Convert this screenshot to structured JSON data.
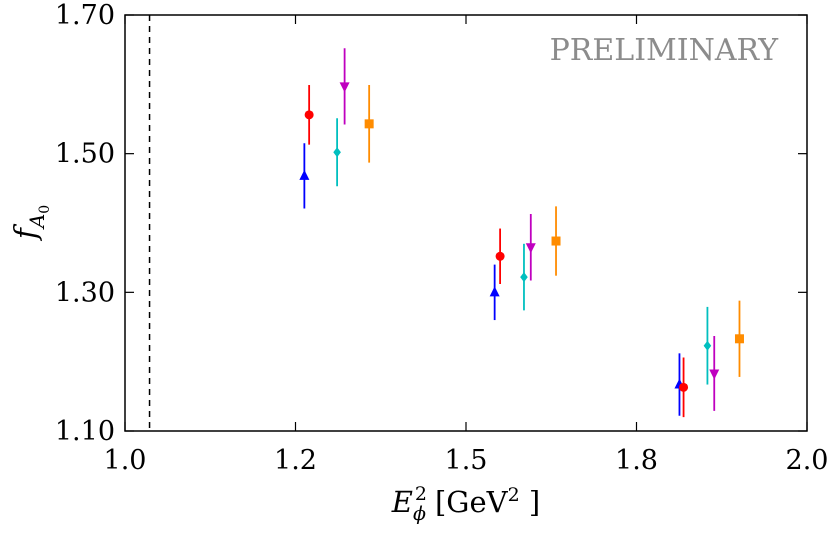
{
  "chart_data": {
    "type": "scatter",
    "title": "",
    "xlabel": {
      "base": "E",
      "sub": "ϕ",
      "sup": "2",
      "unit_prefix": "[GeV",
      "unit_sup": "2",
      "unit_suffix": " ]"
    },
    "ylabel": {
      "base": "f",
      "sub": "A",
      "subsub": "0"
    },
    "xlim": [
      1.0,
      2.0
    ],
    "ylim": [
      1.1,
      1.7
    ],
    "xticks": [
      1.0,
      1.25,
      1.5,
      1.75,
      2.0
    ],
    "xtick_labels": [
      "1.0",
      "1.2",
      "1.5",
      "1.8",
      "2.0"
    ],
    "yticks": [
      1.1,
      1.3,
      1.5,
      1.7
    ],
    "ytick_labels": [
      "1.10",
      "1.30",
      "1.50",
      "1.70"
    ],
    "vline_x": 1.036,
    "annotation": "PRELIMINARY",
    "series": [
      {
        "name": "up-triangle",
        "color": "#0000ff",
        "marker": "triangle-up",
        "points": [
          {
            "x": 1.263,
            "y": 1.468,
            "yerr": 0.047
          },
          {
            "x": 1.542,
            "y": 1.3,
            "yerr": 0.04
          },
          {
            "x": 1.813,
            "y": 1.167,
            "yerr": 0.045
          }
        ]
      },
      {
        "name": "circle",
        "color": "#ff0000",
        "marker": "circle",
        "points": [
          {
            "x": 1.27,
            "y": 1.556,
            "yerr": 0.043
          },
          {
            "x": 1.55,
            "y": 1.352,
            "yerr": 0.04
          },
          {
            "x": 1.819,
            "y": 1.163,
            "yerr": 0.043
          }
        ]
      },
      {
        "name": "diamond",
        "color": "#00bfbf",
        "marker": "diamond",
        "points": [
          {
            "x": 1.311,
            "y": 1.502,
            "yerr": 0.049
          },
          {
            "x": 1.585,
            "y": 1.322,
            "yerr": 0.048
          },
          {
            "x": 1.854,
            "y": 1.223,
            "yerr": 0.056
          }
        ]
      },
      {
        "name": "down-triangle",
        "color": "#bf00bf",
        "marker": "triangle-down",
        "points": [
          {
            "x": 1.322,
            "y": 1.597,
            "yerr": 0.055
          },
          {
            "x": 1.595,
            "y": 1.365,
            "yerr": 0.048
          },
          {
            "x": 1.864,
            "y": 1.183,
            "yerr": 0.054
          }
        ]
      },
      {
        "name": "square",
        "color": "#ff8c00",
        "marker": "square",
        "points": [
          {
            "x": 1.358,
            "y": 1.543,
            "yerr": 0.056
          },
          {
            "x": 1.632,
            "y": 1.374,
            "yerr": 0.05
          },
          {
            "x": 1.901,
            "y": 1.233,
            "yerr": 0.055
          }
        ]
      }
    ]
  }
}
